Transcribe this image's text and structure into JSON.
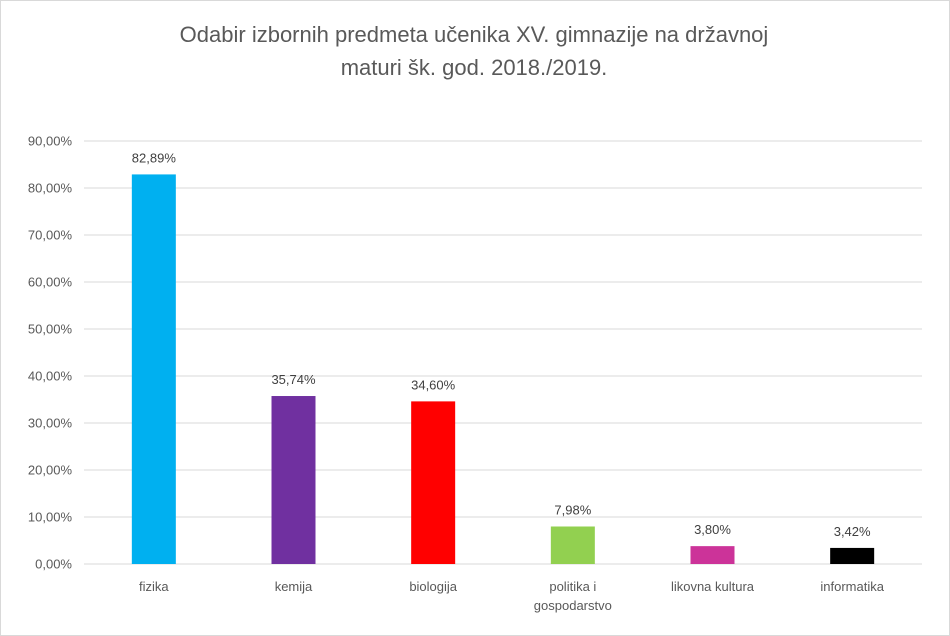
{
  "chart_data": {
    "type": "bar",
    "title_lines": [
      "Odabir izbornih predmeta učenika XV. gimnazije na državnoj",
      "maturi šk. god. 2018./2019."
    ],
    "categories": [
      [
        "fizika"
      ],
      [
        "kemija"
      ],
      [
        "biologija"
      ],
      [
        "politika i",
        "gospodarstvo"
      ],
      [
        "likovna kultura"
      ],
      [
        "informatika"
      ]
    ],
    "values": [
      82.89,
      35.74,
      34.6,
      7.98,
      3.8,
      3.42
    ],
    "data_labels": [
      "82,89%",
      "35,74%",
      "34,60%",
      "7,98%",
      "3,80%",
      "3,42%"
    ],
    "colors": [
      "#00b0f0",
      "#7030a0",
      "#ff0000",
      "#92d050",
      "#cc3399",
      "#000000"
    ],
    "ylim": [
      0,
      90
    ],
    "yticks": [
      0,
      10,
      20,
      30,
      40,
      50,
      60,
      70,
      80,
      90
    ],
    "ytick_labels": [
      "0,00%",
      "10,00%",
      "20,00%",
      "30,00%",
      "40,00%",
      "50,00%",
      "60,00%",
      "70,00%",
      "80,00%",
      "90,00%"
    ],
    "grid": true,
    "legend": "none",
    "gridline_color": "#d9d9d9"
  }
}
